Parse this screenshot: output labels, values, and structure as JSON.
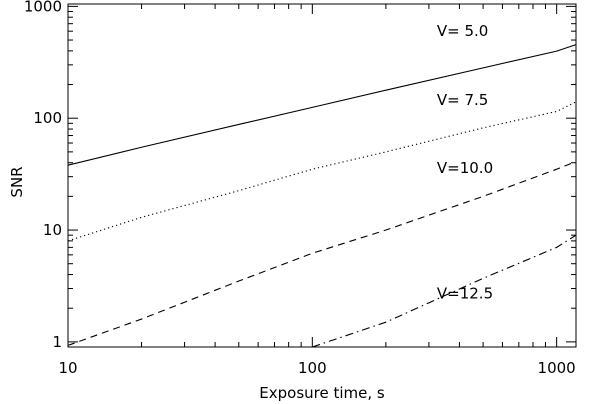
{
  "chart_data": {
    "type": "line",
    "xlabel": "Exposure time, s",
    "ylabel": "SNR",
    "x_scale": "log",
    "y_scale": "log",
    "xlim": [
      10,
      1200
    ],
    "ylim": [
      0.9,
      1050
    ],
    "x_ticks": [
      {
        "value": 10,
        "label": "10"
      },
      {
        "value": 100,
        "label": "100"
      },
      {
        "value": 1000,
        "label": "1000"
      }
    ],
    "y_ticks": [
      {
        "value": 1,
        "label": "1"
      },
      {
        "value": 10,
        "label": "10"
      },
      {
        "value": 100,
        "label": "100"
      },
      {
        "value": 1000,
        "label": "1000"
      }
    ],
    "grid": false,
    "series": [
      {
        "name": "V= 5.0",
        "line_style": "solid",
        "x": [
          10,
          20,
          50,
          100,
          200,
          500,
          1000,
          1200
        ],
        "y": [
          38,
          55,
          88,
          125,
          178,
          282,
          398,
          455
        ]
      },
      {
        "name": "V= 7.5",
        "line_style": "dotted",
        "x": [
          10,
          20,
          50,
          100,
          200,
          500,
          1000,
          1200
        ],
        "y": [
          8,
          13,
          22.5,
          35,
          50,
          82,
          115,
          140
        ]
      },
      {
        "name": "V=10.0",
        "line_style": "dashed",
        "x": [
          10,
          20,
          50,
          100,
          200,
          500,
          1000,
          1200
        ],
        "y": [
          0.93,
          1.6,
          3.5,
          6.2,
          10,
          20,
          35,
          41
        ]
      },
      {
        "name": "V=12.5",
        "line_style": "dashdot",
        "x": [
          100,
          200,
          500,
          1000,
          1200
        ],
        "y": [
          0.9,
          1.5,
          3.7,
          7,
          9
        ]
      }
    ],
    "annotations": [
      {
        "text": "V= 5.0",
        "x": 300,
        "y": 600
      },
      {
        "text": "V= 7.5",
        "x": 300,
        "y": 145
      },
      {
        "text": "V=10.0",
        "x": 300,
        "y": 36
      },
      {
        "text": "V=12.5",
        "x": 300,
        "y": 2.7
      }
    ]
  }
}
